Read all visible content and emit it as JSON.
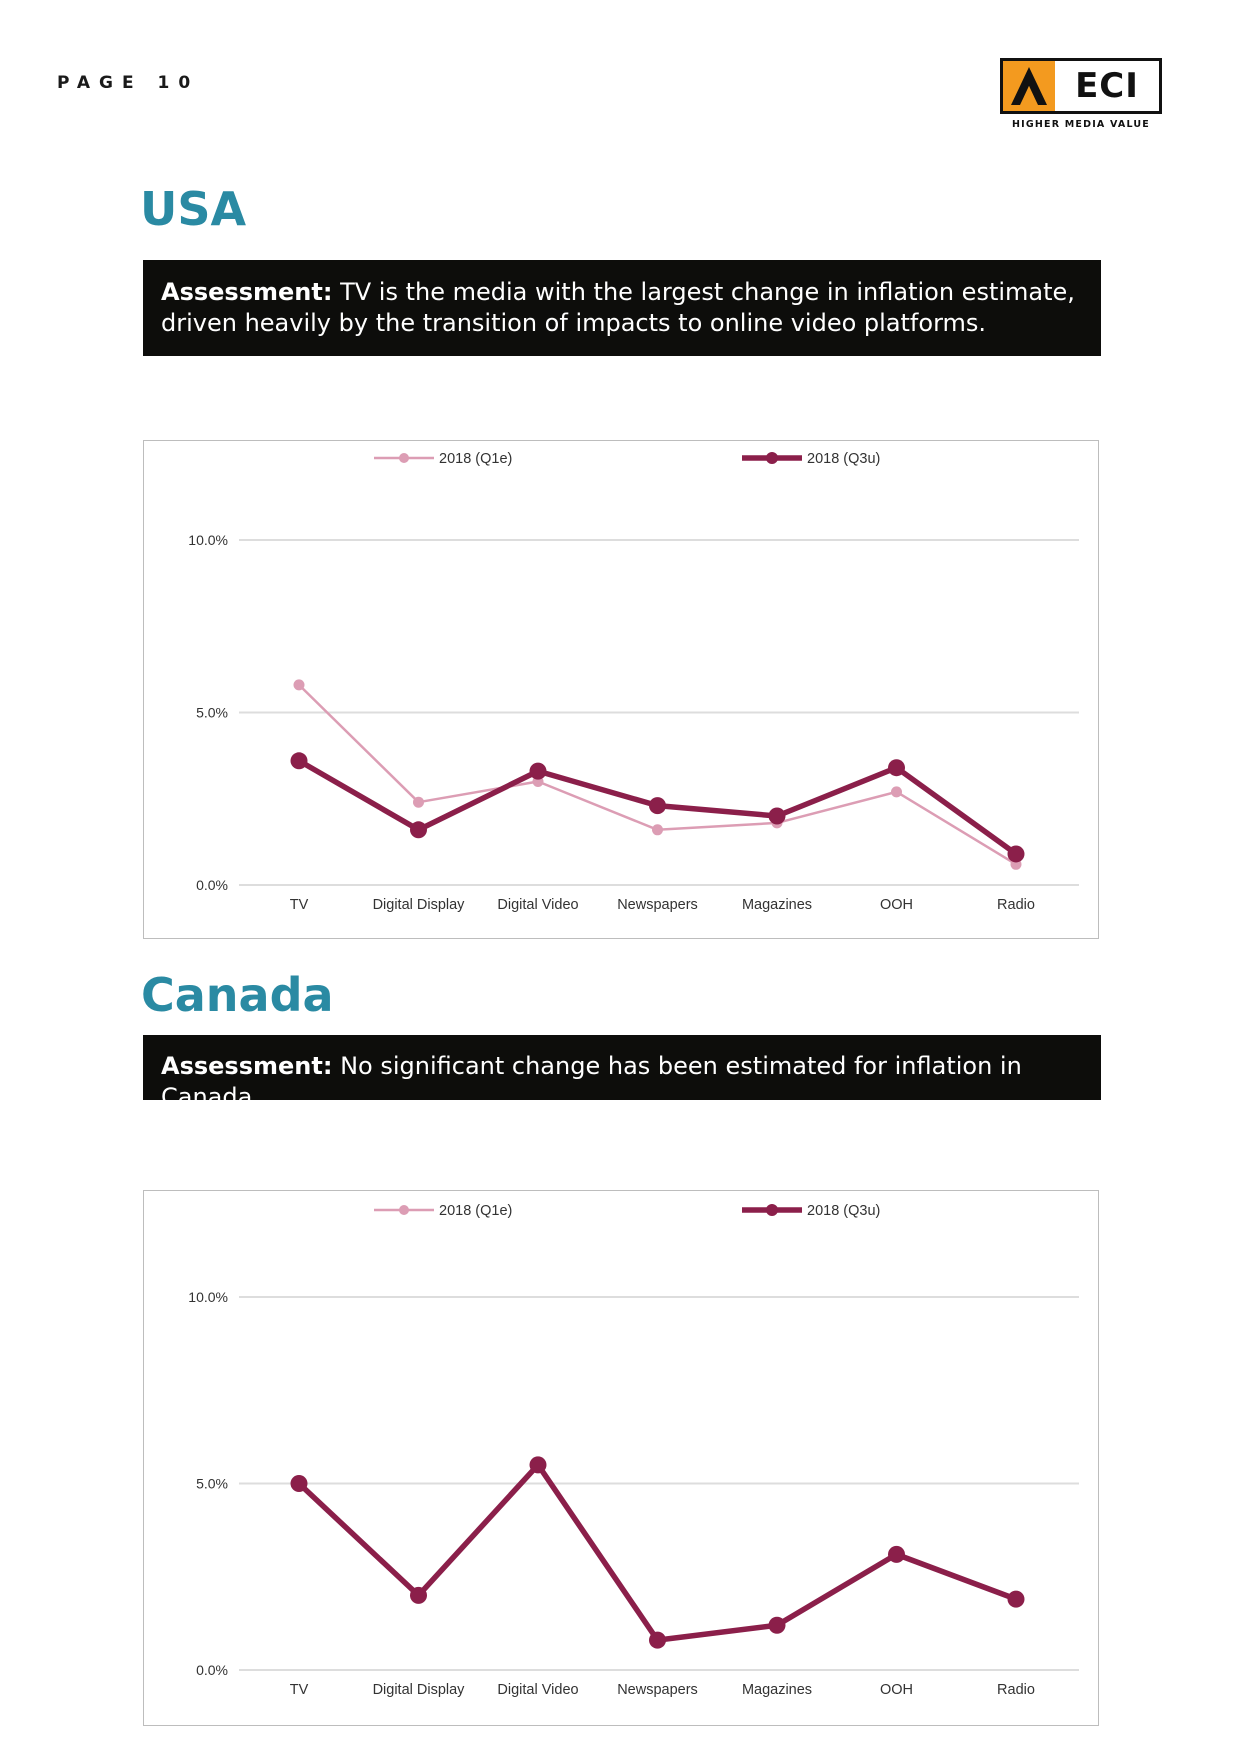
{
  "page": {
    "label": "PAGE 10"
  },
  "brand": {
    "name": "ECI",
    "tagline": "HIGHER MEDIA VALUE",
    "accent": "#f39a1f"
  },
  "colors": {
    "title": "#2a8aa3",
    "q1": "#dc9db4",
    "q3": "#8b1f4a",
    "grid": "#dddddd"
  },
  "sections": [
    {
      "title": "USA",
      "assessment_label": "Assessment:",
      "assessment_text": "TV is the media with the largest change in inflation estimate, driven heavily by the transition of impacts to online video platforms."
    },
    {
      "title": "Canada",
      "assessment_label": "Assessment:",
      "assessment_text": "No significant change has been estimated for inflation in Canada."
    }
  ],
  "chart_data": [
    {
      "type": "line",
      "categories": [
        "TV",
        "Digital Display",
        "Digital Video",
        "Newspapers",
        "Magazines",
        "OOH",
        "Radio"
      ],
      "series": [
        {
          "name": "2018 (Q1e)",
          "values": [
            5.8,
            2.4,
            3.0,
            1.6,
            1.8,
            2.7,
            0.6
          ]
        },
        {
          "name": "2018 (Q3u)",
          "values": [
            3.6,
            1.6,
            3.3,
            2.3,
            2.0,
            3.4,
            0.9
          ]
        }
      ],
      "yticks": [
        "0.0%",
        "5.0%",
        "10.0%"
      ],
      "ylim": [
        0,
        10
      ],
      "grid": true,
      "legend": "top"
    },
    {
      "type": "line",
      "categories": [
        "TV",
        "Digital Display",
        "Digital Video",
        "Newspapers",
        "Magazines",
        "OOH",
        "Radio"
      ],
      "series": [
        {
          "name": "2018 (Q1e)",
          "values": [
            5.0,
            2.0,
            5.5,
            0.8,
            1.2,
            3.1,
            1.9
          ]
        },
        {
          "name": "2018 (Q3u)",
          "values": [
            5.0,
            2.0,
            5.5,
            0.8,
            1.2,
            3.1,
            1.9
          ]
        }
      ],
      "yticks": [
        "0.0%",
        "5.0%",
        "10.0%"
      ],
      "ylim": [
        0,
        10
      ],
      "grid": true,
      "legend": "top"
    }
  ]
}
